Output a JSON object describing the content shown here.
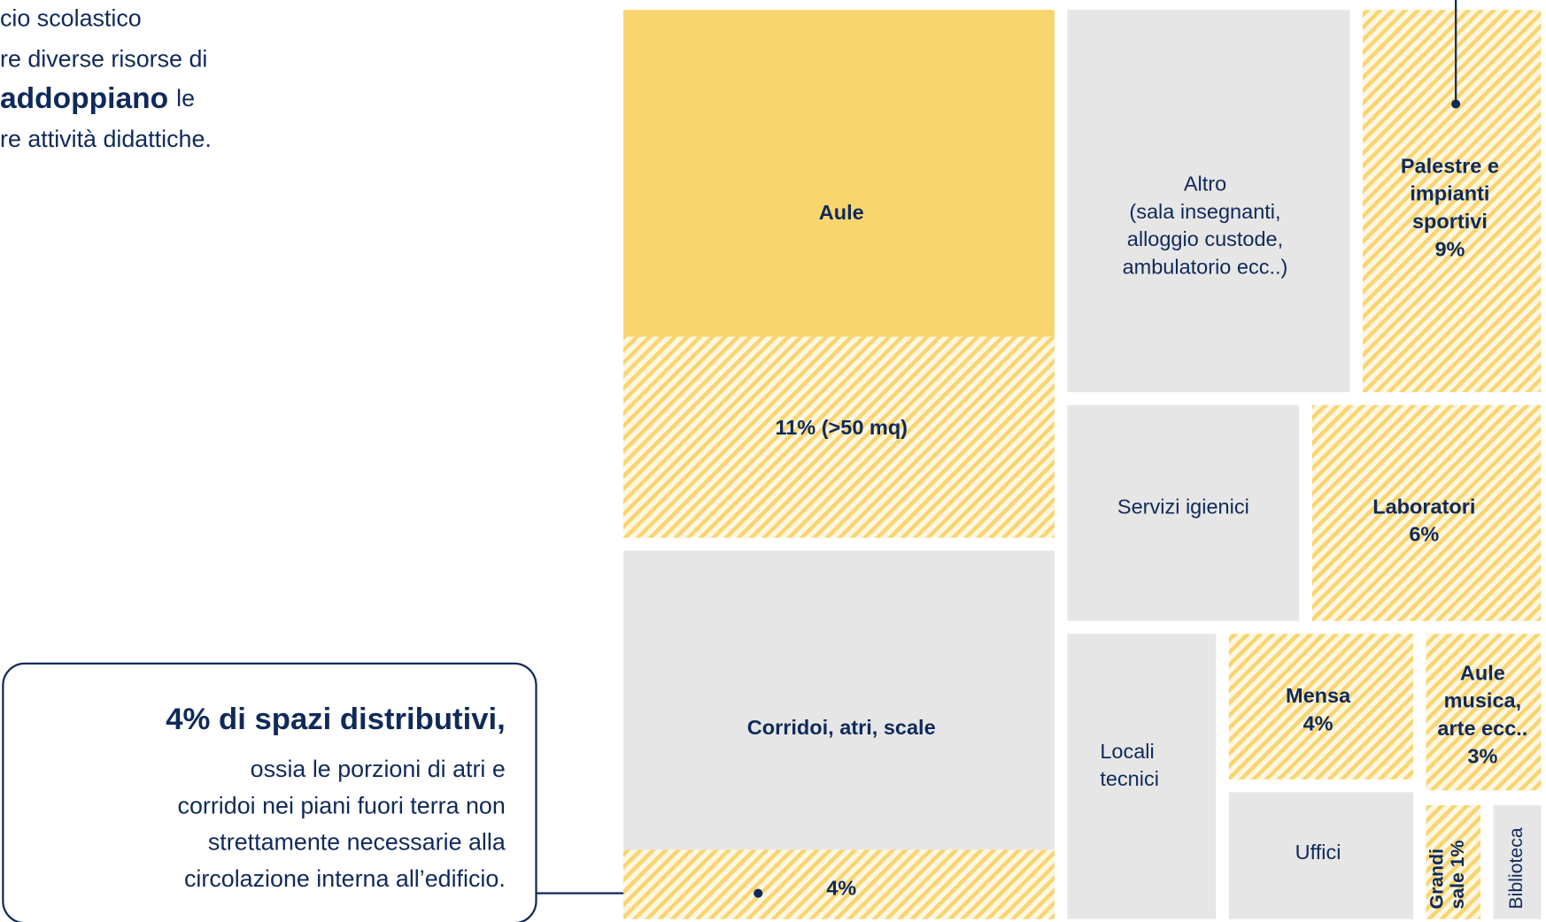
{
  "intro": {
    "lines": [
      "cio scolastico",
      "re diverse risorse di"
    ],
    "emphasis": "addoppiano",
    "emphasis_rest": "le",
    "last_line": "re attività didattiche."
  },
  "callout": {
    "title": "4% di spazi distributivi,",
    "lines": [
      "ossia le porzioni di atri e",
      "corridoi nei piani fuori terra non",
      "strettamente necessarie alla",
      "circolazione interna all’edificio."
    ]
  },
  "cells": [
    {
      "lines": [
        "Aule"
      ]
    },
    {
      "lines": [
        "11% (>50 mq)"
      ]
    },
    {
      "lines": [
        "Corridoi, atri, scale"
      ]
    },
    {
      "lines": [
        "4%"
      ]
    },
    {
      "lines": [
        "Altro",
        "(sala insegnanti,",
        "alloggio custode,",
        "ambulatorio ecc..)"
      ]
    },
    {
      "lines": [
        "Palestre e",
        "impianti",
        "sportivi",
        "9%"
      ]
    },
    {
      "lines": [
        "Servizi igienici"
      ]
    },
    {
      "lines": [
        "Laboratori",
        "6%"
      ]
    },
    {
      "lines": [
        "Locali",
        "tecnici"
      ]
    },
    {
      "lines": [
        "Mensa",
        "4%"
      ]
    },
    {
      "lines": [
        "Uffici"
      ]
    },
    {
      "lines": [
        "Aule",
        "musica,",
        "arte ecc..",
        "3%"
      ]
    },
    {
      "lines": [
        "Grandi",
        "sale 1%"
      ]
    },
    {
      "lines": [
        "Biblioteca"
      ]
    }
  ]
}
